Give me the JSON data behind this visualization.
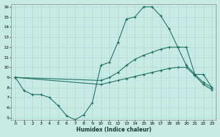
{
  "xlabel": "Humidex (Indice chaleur)",
  "ylabel": "",
  "background_color": "#c8eae4",
  "grid_color": "#b0ddd6",
  "line_color": "#1a7060",
  "xlim": [
    -0.5,
    23.5
  ],
  "ylim": [
    4.8,
    16.3
  ],
  "xticks": [
    0,
    1,
    2,
    3,
    4,
    5,
    6,
    7,
    8,
    9,
    10,
    11,
    12,
    13,
    14,
    15,
    16,
    17,
    18,
    19,
    20,
    21,
    22,
    23
  ],
  "yticks": [
    5,
    6,
    7,
    8,
    9,
    10,
    11,
    12,
    13,
    14,
    15,
    16
  ],
  "series": [
    {
      "x": [
        0,
        1,
        2,
        3,
        4,
        5,
        6,
        7,
        8,
        9,
        10,
        11,
        12,
        13,
        14,
        15,
        16,
        17,
        18,
        19,
        20,
        21,
        22,
        23
      ],
      "y": [
        9.0,
        7.7,
        7.3,
        7.3,
        7.0,
        6.2,
        5.2,
        4.8,
        5.3,
        6.5,
        10.2,
        10.5,
        12.5,
        14.8,
        15.0,
        16.0,
        16.0,
        15.1,
        13.8,
        12.0,
        12.0,
        9.3,
        9.3,
        8.0
      ]
    },
    {
      "x": [
        0,
        10,
        11,
        12,
        13,
        14,
        15,
        16,
        17,
        18,
        19,
        20,
        21,
        22,
        23
      ],
      "y": [
        9.0,
        8.7,
        9.0,
        9.5,
        10.2,
        10.8,
        11.2,
        11.5,
        11.8,
        12.0,
        12.0,
        10.2,
        9.3,
        8.5,
        8.0
      ]
    },
    {
      "x": [
        0,
        10,
        11,
        12,
        13,
        14,
        15,
        16,
        17,
        18,
        19,
        20,
        21,
        22,
        23
      ],
      "y": [
        9.0,
        8.3,
        8.5,
        8.7,
        8.9,
        9.1,
        9.3,
        9.5,
        9.7,
        9.9,
        10.0,
        10.0,
        9.2,
        8.3,
        7.8
      ]
    }
  ]
}
